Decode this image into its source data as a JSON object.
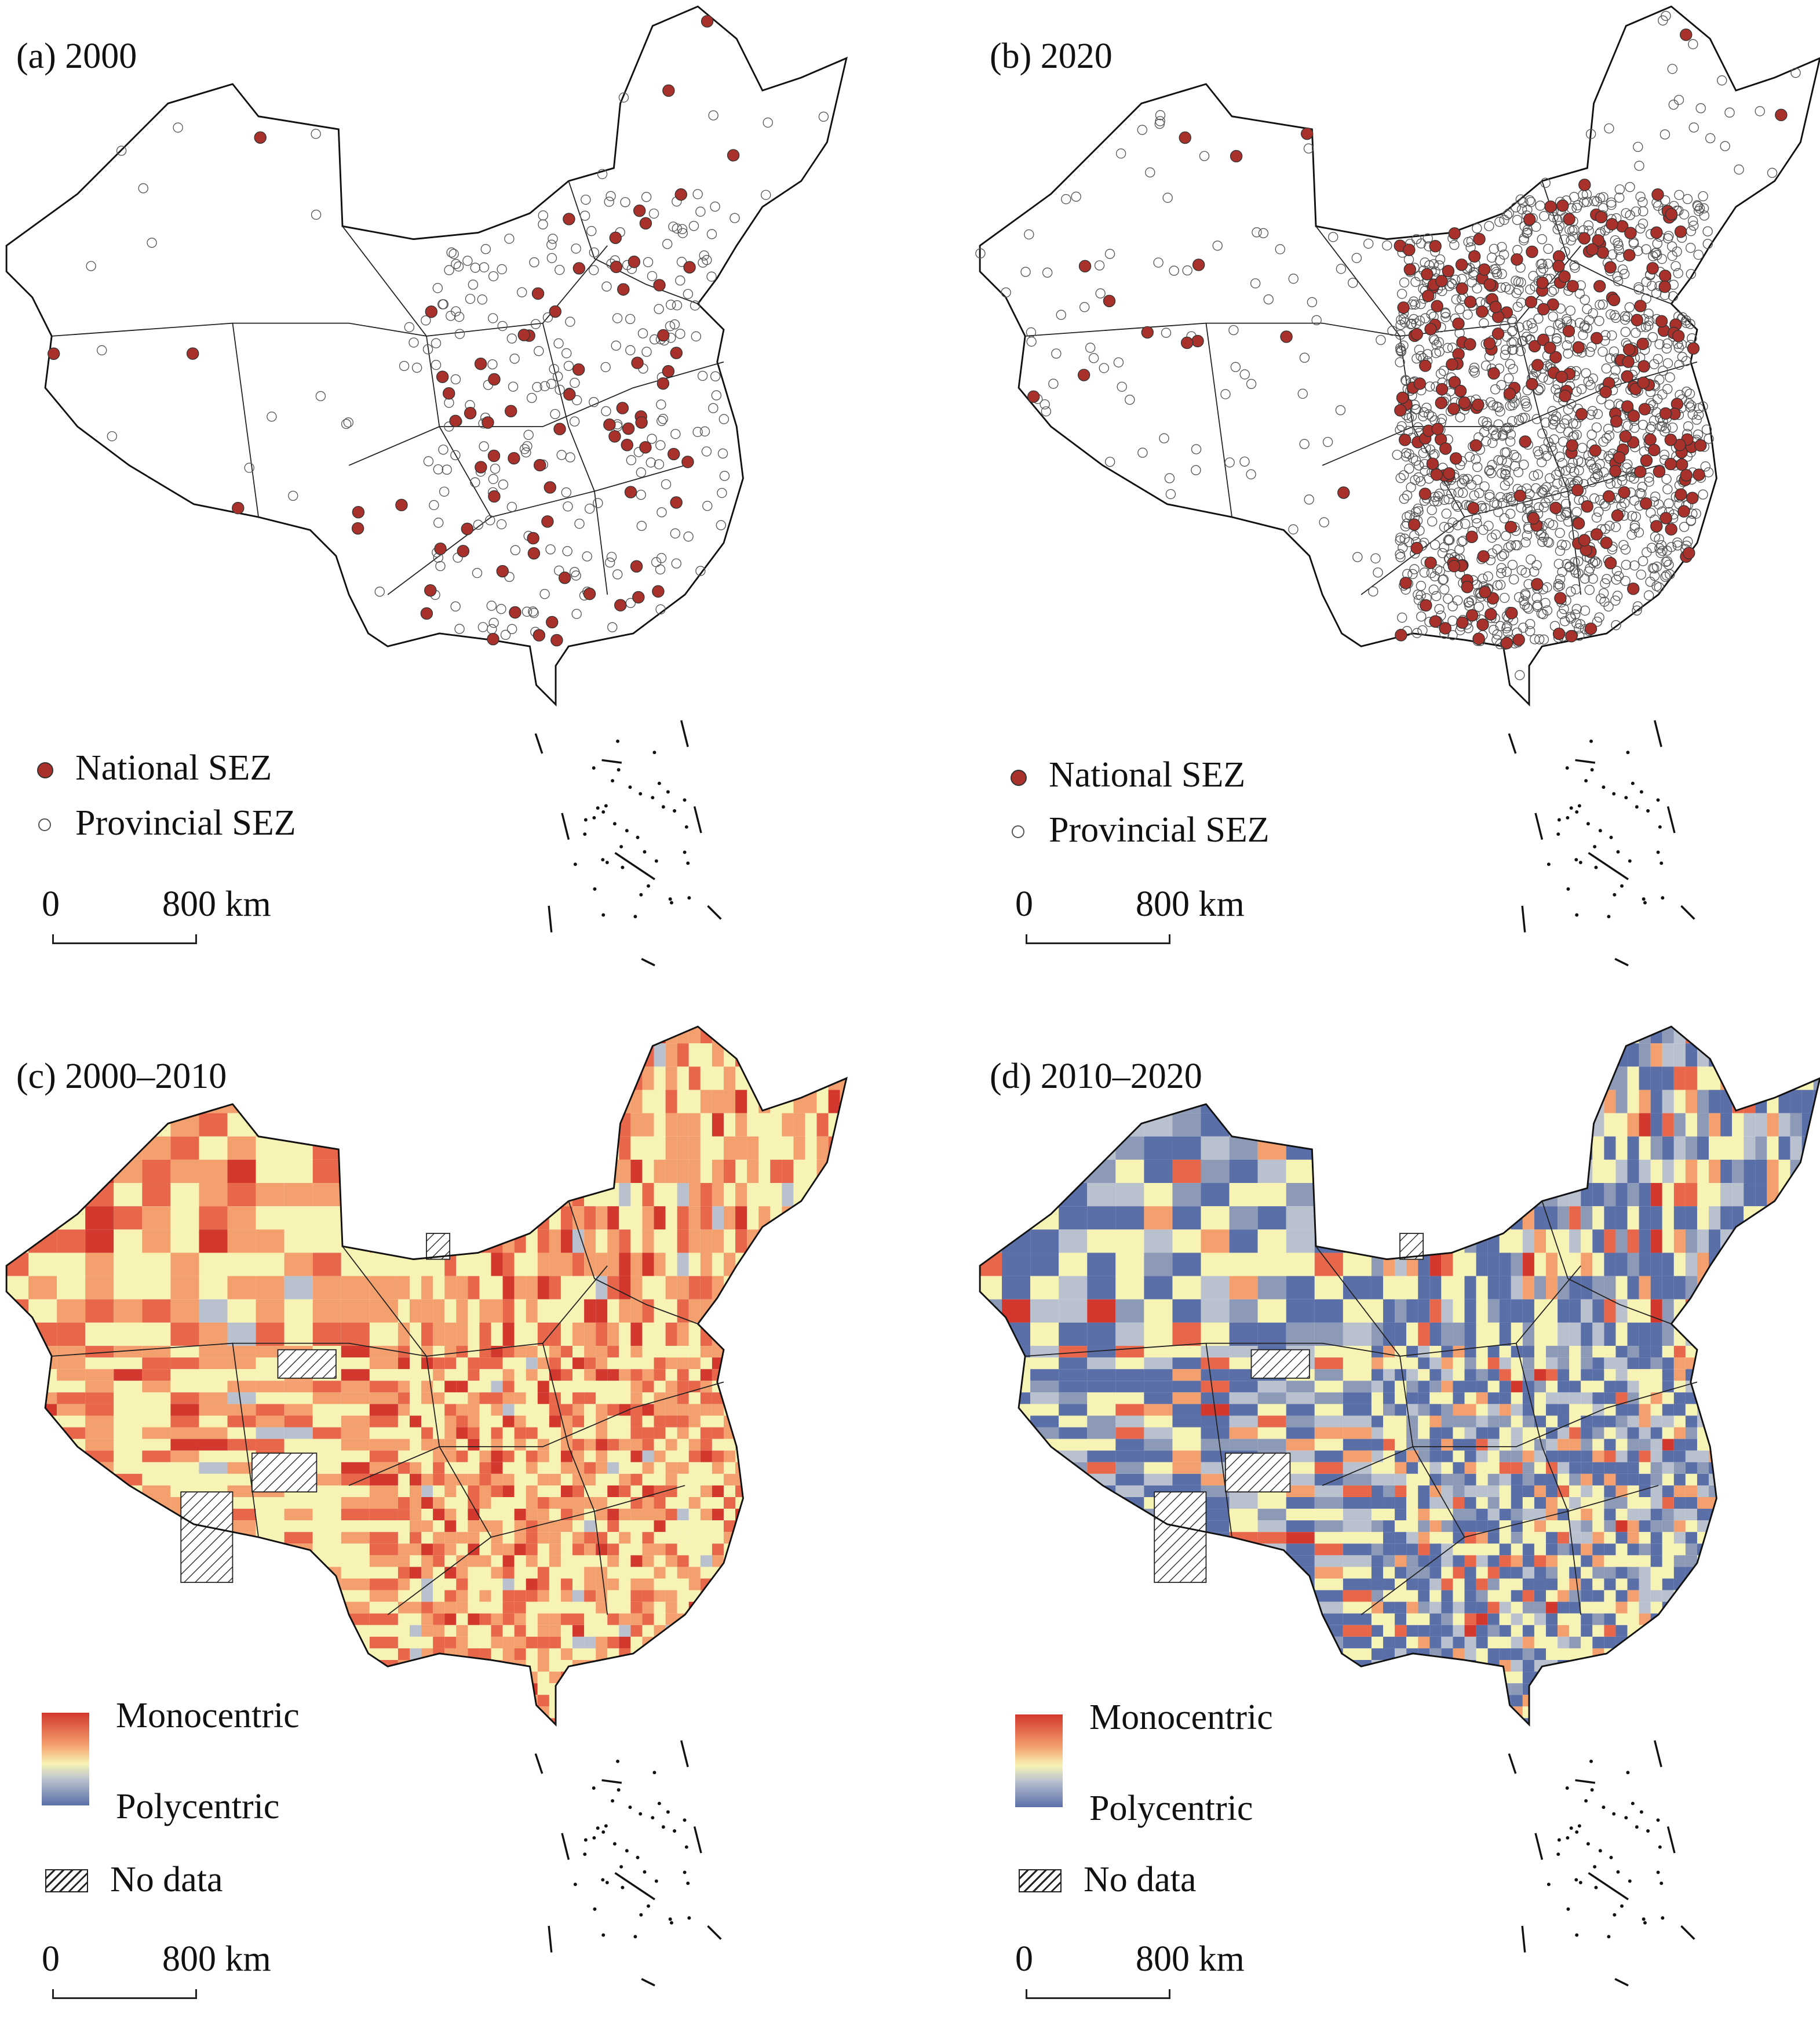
{
  "panels": [
    {
      "id": "a",
      "title": "(a) 2000",
      "type": "points",
      "legend": {
        "national": "National SEZ",
        "provincial": "Provincial SEZ"
      },
      "scale": {
        "zero": "0",
        "dist": "800 km"
      }
    },
    {
      "id": "b",
      "title": "(b) 2020",
      "type": "points",
      "legend": {
        "national": "National SEZ",
        "provincial": "Provincial SEZ"
      },
      "scale": {
        "zero": "0",
        "dist": "800 km"
      }
    },
    {
      "id": "c",
      "title": "(c) 2000–2010",
      "type": "choropleth",
      "legend": {
        "high": "Monocentric",
        "low": "Polycentric",
        "nodata": "No data"
      },
      "scale": {
        "zero": "0",
        "dist": "800 km"
      }
    },
    {
      "id": "d",
      "title": "(d) 2010–2020",
      "type": "choropleth",
      "legend": {
        "high": "Monocentric",
        "low": "Polycentric",
        "nodata": "No data"
      },
      "scale": {
        "zero": "0",
        "dist": "800 km"
      }
    }
  ],
  "colors": {
    "national": "#a8322b",
    "mono": "#d2382d",
    "mid": "#f7f3b4",
    "poly": "#5a6fa8"
  }
}
